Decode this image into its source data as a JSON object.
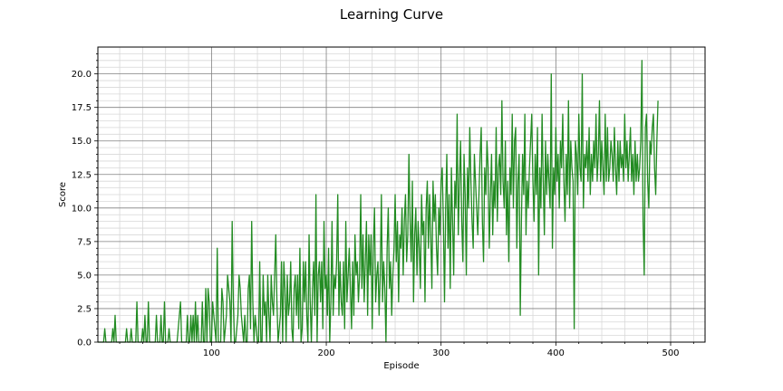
{
  "chart_data": {
    "type": "line",
    "title": "Learning Curve",
    "xlabel": "Episode",
    "ylabel": "Score",
    "xlim": [
      1,
      530
    ],
    "ylim": [
      0,
      22
    ],
    "xticks": [
      100,
      200,
      300,
      400,
      500
    ],
    "yticks": [
      0.0,
      2.5,
      5.0,
      7.5,
      10.0,
      12.5,
      15.0,
      17.5,
      20.0
    ],
    "xtick_labels": [
      "100",
      "200",
      "300",
      "400",
      "500"
    ],
    "ytick_labels": [
      "0.0",
      "2.5",
      "5.0",
      "7.5",
      "10.0",
      "12.5",
      "15.0",
      "17.5",
      "20.0"
    ],
    "grid": {
      "major": true,
      "minor": true
    },
    "line_color": "#228b22",
    "series": [
      {
        "x_start": 1,
        "values": [
          0,
          0,
          0,
          0,
          0,
          0,
          1,
          0,
          0,
          0,
          0,
          0,
          0,
          1,
          0,
          2,
          0,
          0,
          0,
          0,
          0,
          0,
          0,
          0,
          0,
          1,
          0,
          0,
          0,
          1,
          0,
          0,
          0,
          0,
          3,
          0,
          0,
          0,
          0,
          1,
          0,
          2,
          0,
          0,
          3,
          0,
          0,
          0,
          0,
          0,
          0,
          2,
          0,
          0,
          0,
          2,
          0,
          0,
          3,
          0,
          0,
          0,
          1,
          0,
          0,
          0,
          0,
          0,
          0,
          0,
          1,
          2,
          3,
          0,
          0,
          0,
          0,
          0,
          2,
          0,
          0,
          2,
          0,
          2,
          0,
          3,
          0,
          2,
          0,
          0,
          0,
          3,
          0,
          0,
          4,
          0,
          4,
          3,
          0,
          0,
          3,
          2,
          1,
          0,
          7,
          0,
          0,
          0,
          4,
          3,
          0,
          1,
          2,
          5,
          4,
          3,
          0,
          9,
          3,
          0,
          0,
          1,
          2,
          5,
          4,
          2,
          1,
          0,
          2,
          0,
          0,
          4,
          5,
          1,
          9,
          3,
          0,
          2,
          1,
          0,
          0,
          6,
          0,
          0,
          5,
          2,
          3,
          0,
          5,
          2,
          0,
          5,
          3,
          2,
          5,
          8,
          3,
          0,
          1,
          2,
          6,
          0,
          6,
          4,
          0,
          5,
          2,
          3,
          6,
          1,
          0,
          4,
          5,
          2,
          5,
          1,
          7,
          0,
          1,
          6,
          3,
          6,
          2,
          0,
          8,
          3,
          0,
          4,
          6,
          2,
          11,
          0,
          5,
          6,
          3,
          6,
          1,
          9,
          4,
          5,
          2,
          7,
          0,
          3,
          9,
          2,
          5,
          4,
          6,
          11,
          2,
          6,
          3,
          2,
          6,
          1,
          9,
          3,
          5,
          7,
          4,
          1,
          6,
          2,
          8,
          5,
          6,
          3,
          5,
          11,
          4,
          8,
          3,
          6,
          9,
          2,
          8,
          5,
          8,
          1,
          7,
          10,
          3,
          5,
          6,
          2,
          5,
          11,
          3,
          6,
          4,
          0,
          7,
          10,
          4,
          6,
          2,
          5,
          7,
          11,
          6,
          9,
          3,
          8,
          7,
          10,
          5,
          9,
          11,
          6,
          8,
          14,
          9,
          6,
          12,
          3,
          8,
          10,
          5,
          9,
          7,
          4,
          11,
          8,
          9,
          3,
          10,
          12,
          7,
          11,
          8,
          4,
          12,
          9,
          11,
          7,
          5,
          10,
          8,
          12,
          13,
          9,
          3,
          10,
          14,
          7,
          11,
          4,
          13,
          9,
          5,
          12,
          10,
          17,
          8,
          12,
          15,
          9,
          6,
          14,
          11,
          5,
          13,
          10,
          16,
          12,
          9,
          7,
          14,
          12,
          10,
          8,
          11,
          14,
          16,
          9,
          6,
          13,
          11,
          15,
          13,
          7,
          11,
          14,
          8,
          12,
          10,
          16,
          9,
          13,
          14,
          11,
          18,
          12,
          10,
          15,
          8,
          12,
          6,
          13,
          11,
          17,
          10,
          15,
          16,
          7,
          12,
          14,
          2,
          9,
          14,
          11,
          17,
          8,
          12,
          10,
          13,
          15,
          17,
          12,
          9,
          14,
          11,
          16,
          5,
          13,
          10,
          17,
          12,
          8,
          15,
          11,
          14,
          12,
          10,
          20,
          7,
          13,
          11,
          16,
          12,
          14,
          10,
          15,
          13,
          17,
          12,
          9,
          14,
          11,
          18,
          10,
          15,
          13,
          12,
          1,
          15,
          14,
          11,
          17,
          13,
          12,
          20,
          10,
          14,
          13,
          15,
          12,
          16,
          11,
          14,
          12,
          15,
          13,
          17,
          12,
          14,
          18,
          12,
          15,
          13,
          11,
          17,
          12,
          16,
          12,
          13,
          15,
          14,
          12,
          16,
          13,
          11,
          15,
          12,
          15,
          13,
          14,
          12,
          17,
          13,
          15,
          12,
          14,
          16,
          12,
          14,
          11,
          15,
          12,
          14,
          12,
          13,
          15,
          21,
          9,
          5,
          16,
          17,
          12,
          10,
          15,
          14,
          16,
          17,
          13,
          11,
          15,
          18
        ]
      }
    ]
  }
}
